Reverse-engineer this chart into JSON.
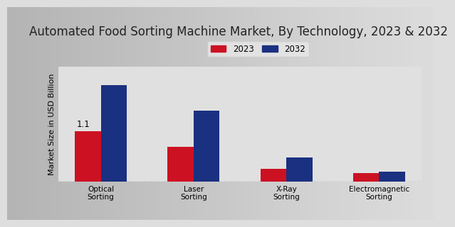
{
  "title": "Automated Food Sorting Machine Market, By Technology, 2023 & 2032",
  "ylabel": "Market Size in USD Billion",
  "categories": [
    "Optical\nSorting",
    "Laser\nSorting",
    "X-Ray\nSorting",
    "Electromagnetic\nSorting"
  ],
  "values_2023": [
    1.1,
    0.75,
    0.28,
    0.19
  ],
  "values_2032": [
    2.1,
    1.55,
    0.52,
    0.22
  ],
  "color_2023": "#cc1122",
  "color_2032": "#1a3080",
  "annotation_text": "1.1",
  "annotation_index": 0,
  "legend_2023": "2023",
  "legend_2032": "2032",
  "bg_left": "#d8d8d8",
  "bg_right": "#f0f0f0",
  "title_fontsize": 12,
  "ylabel_fontsize": 8,
  "bar_width": 0.28,
  "ylim": [
    0,
    2.5
  ]
}
